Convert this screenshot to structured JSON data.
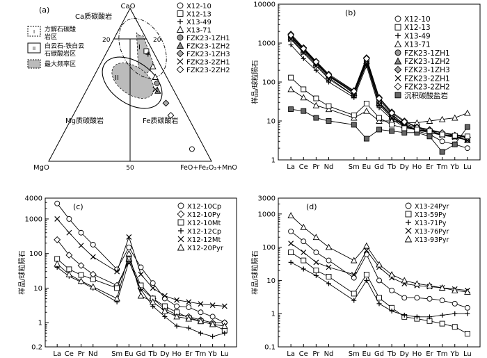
{
  "ternary": {
    "label": "(a)",
    "vertices": {
      "top": "CaO",
      "left": "MgO",
      "right": "FeO+Fe₂O₃+MnO"
    },
    "scale_marks": [
      "20",
      "20",
      "50"
    ],
    "fields": {
      "ca": "Ca质碳酸岩",
      "mg": "Mg质碳酸岩",
      "fe": "Fe质碳酸岩"
    },
    "region_labels": [
      "I",
      "II"
    ],
    "legend": [
      {
        "line1": "方解石碳酸",
        "line2": "岩区",
        "symbol": "I"
      },
      {
        "line1": "白云石-铁白云",
        "line2": "石碳酸岩区",
        "symbol": "II"
      },
      {
        "line1": "最大频率区",
        "line2": "",
        "symbol": "fill"
      }
    ],
    "points": [
      {
        "sample": "X12-10",
        "marker": "circle",
        "ca": 8,
        "fe": 84
      },
      {
        "sample": "X12-13",
        "marker": "square",
        "ca": 72,
        "fe": 24
      },
      {
        "sample": "X13-49",
        "marker": "plus",
        "ca": 70,
        "fe": 26
      },
      {
        "sample": "X13-71",
        "marker": "triangle",
        "ca": 62,
        "fe": 33
      },
      {
        "sample": "X13-71",
        "marker": "triangle",
        "ca": 55,
        "fe": 38
      },
      {
        "sample": "FZK23-1ZH1",
        "marker": "circle-filled",
        "ca": 51,
        "fe": 41
      },
      {
        "sample": "FZK23-1ZH2",
        "marker": "triangle-filled",
        "ca": 46,
        "fe": 44
      },
      {
        "sample": "FZK23-2ZH1",
        "marker": "cross",
        "ca": 47,
        "fe": 42
      },
      {
        "sample": "FZK23-1ZH3",
        "marker": "diamond-gray",
        "ca": 38,
        "fe": 53
      },
      {
        "sample": "FZK23-2ZH2",
        "marker": "diamond",
        "ca": 30,
        "fe": 60
      }
    ],
    "point_legend": [
      {
        "label": "X12-10",
        "marker": "circle"
      },
      {
        "label": "X12-13",
        "marker": "square"
      },
      {
        "label": "X13-49",
        "marker": "plus"
      },
      {
        "label": "X13-71",
        "marker": "triangle"
      },
      {
        "label": "FZK23-1ZH1",
        "marker": "circle-filled"
      },
      {
        "label": "FZK23-1ZH2",
        "marker": "triangle-filled"
      },
      {
        "label": "FZK23-1ZH3",
        "marker": "diamond-gray"
      },
      {
        "label": "FZK23-2ZH1",
        "marker": "cross"
      },
      {
        "label": "FZK23-2ZH2",
        "marker": "diamond"
      }
    ]
  },
  "chart_data": [
    {
      "type": "line",
      "panel": "(b)",
      "ylabel": "样品/球粒陨石",
      "yscale": "log",
      "ylim": [
        1,
        10000
      ],
      "yticks": [
        "1",
        "10",
        "100",
        "1000",
        "10000"
      ],
      "categories": [
        "La",
        "Ce",
        "Pr",
        "Nd",
        "Sm",
        "Eu",
        "Gd",
        "Tb",
        "Dy",
        "Ho",
        "Er",
        "Tm",
        "Yb",
        "Lu"
      ],
      "x": [
        1,
        2,
        3,
        4,
        6,
        7,
        8,
        9,
        10,
        11,
        12,
        13,
        14,
        15
      ],
      "series": [
        {
          "name": "X12-10",
          "marker": "circle",
          "values": [
            1500,
            700,
            320,
            150,
            50,
            380,
            35,
            15,
            8,
            5.5,
            4.5,
            3,
            2.5,
            2
          ]
        },
        {
          "name": "X12-13",
          "marker": "square",
          "values": [
            1300,
            600,
            280,
            130,
            45,
            330,
            28,
            13,
            7.5,
            6,
            5,
            4.5,
            4,
            3.5
          ]
        },
        {
          "name": "X13-49",
          "marker": "plus",
          "values": [
            900,
            400,
            200,
            100,
            40,
            260,
            22,
            11,
            7,
            6,
            5.5,
            5,
            4.5,
            4
          ]
        },
        {
          "name": "X13-71",
          "marker": "triangle",
          "values": [
            65,
            40,
            25,
            20,
            12,
            18,
            10,
            10,
            9,
            9,
            10,
            11,
            12,
            16
          ]
        },
        {
          "name": "FZK23-1ZH1",
          "marker": "circle-filled",
          "values": [
            1450,
            680,
            310,
            145,
            55,
            350,
            30,
            14,
            8.5,
            6.5,
            5.5,
            4.5,
            4,
            3.5
          ]
        },
        {
          "name": "FZK23-1ZH2",
          "marker": "triangle-filled",
          "values": [
            1400,
            650,
            300,
            140,
            52,
            340,
            29,
            13,
            8,
            6,
            5,
            4.5,
            4,
            3.2
          ]
        },
        {
          "name": "FZK23-1ZH3",
          "marker": "diamond-gray",
          "values": [
            1700,
            760,
            340,
            160,
            60,
            420,
            40,
            17,
            10,
            7,
            6,
            5,
            4.2,
            3.8
          ]
        },
        {
          "name": "FZK23-2ZH1",
          "marker": "cross",
          "values": [
            1250,
            560,
            260,
            120,
            45,
            300,
            26,
            12,
            7.5,
            5.8,
            5,
            4.3,
            3.8,
            3.2
          ]
        },
        {
          "name": "FZK23-2ZH2",
          "marker": "diamond",
          "values": [
            1600,
            720,
            330,
            150,
            58,
            400,
            38,
            16,
            9.5,
            6.8,
            5.8,
            5,
            4.3,
            3.8
          ]
        },
        {
          "name": "沉积碳酸盐岩",
          "marker": "square-filled",
          "values": [
            20,
            18,
            12,
            10,
            8,
            3.5,
            6,
            5.5,
            5,
            5,
            4,
            1.6,
            2.5,
            7
          ]
        },
        {
          "name": "",
          "marker": "square",
          "values": [
            130,
            65,
            38,
            24,
            14,
            28,
            12,
            8,
            6.5,
            6,
            5.5,
            4.5,
            4.2,
            4
          ]
        }
      ],
      "legend": [
        "X12-10",
        "X12-13",
        "X13-49",
        "X13-71",
        "FZK23-1ZH1",
        "FZK23-1ZH2",
        "FZK23-1ZH3",
        "FZK23-2ZH1",
        "FZK23-2ZH2",
        "沉积碳酸盐岩"
      ]
    },
    {
      "type": "line",
      "panel": "(c)",
      "ylabel": "样品/球粒陨石",
      "yscale": "log",
      "ylim": [
        0.2,
        4000
      ],
      "yticks": [
        "0.2",
        "1",
        "10",
        "100",
        "1000",
        "4000"
      ],
      "categories": [
        "La",
        "Ce",
        "Pr",
        "Nd",
        "Sm",
        "Eu",
        "Gd",
        "Tb",
        "Dy",
        "Ho",
        "Er",
        "Tm",
        "Yb",
        "Lu"
      ],
      "x": [
        1,
        2,
        3,
        4,
        6,
        7,
        8,
        9,
        10,
        11,
        12,
        13,
        14,
        15
      ],
      "series": [
        {
          "name": "X12-10Cp",
          "marker": "circle",
          "values": [
            2800,
            1000,
            400,
            180,
            35,
            150,
            40,
            14,
            5,
            3,
            2.8,
            2,
            1.5,
            1
          ]
        },
        {
          "name": "X12-10Py",
          "marker": "diamond",
          "values": [
            250,
            90,
            45,
            25,
            12,
            60,
            10,
            5,
            2.5,
            1.7,
            1.5,
            1.2,
            1,
            1
          ]
        },
        {
          "name": "X12-10Mt",
          "marker": "square",
          "values": [
            70,
            35,
            24,
            18,
            10,
            70,
            12,
            5,
            3,
            2,
            1.4,
            1.1,
            0.9,
            0.6
          ]
        },
        {
          "name": "X12-12Cp",
          "marker": "plus",
          "values": [
            40,
            22,
            15,
            10,
            4,
            60,
            9,
            3,
            1.5,
            0.8,
            0.7,
            0.5,
            0.4,
            0.5
          ]
        },
        {
          "name": "X12-12Mt",
          "marker": "cross",
          "values": [
            1000,
            400,
            170,
            80,
            30,
            300,
            25,
            10,
            6,
            4.5,
            4,
            3.5,
            3.2,
            3
          ]
        },
        {
          "name": "X12-20Pyr",
          "marker": "triangle",
          "values": [
            50,
            25,
            16,
            11,
            5,
            100,
            6,
            4,
            2.2,
            1.5,
            1.3,
            1.1,
            0.9,
            0.8
          ]
        }
      ],
      "legend": [
        "X12-10Cp",
        "X12-10Py",
        "X12-10Mt",
        "X12-12Cp",
        "X12-12Mt",
        "X12-20Pyr"
      ]
    },
    {
      "type": "line",
      "panel": "(d)",
      "ylabel": "样品/球粒陨石",
      "yscale": "log",
      "ylim": [
        0.1,
        3000
      ],
      "yticks": [
        "0.1",
        "1",
        "10",
        "100",
        "1000",
        "3000"
      ],
      "categories": [
        "La",
        "Ce",
        "Pr",
        "Nd",
        "Sm",
        "Eu",
        "Gd",
        "Tb",
        "Dy",
        "Ho",
        "Er",
        "Tm",
        "Yb",
        "Lu"
      ],
      "x": [
        1,
        2,
        3,
        4,
        6,
        7,
        8,
        9,
        10,
        11,
        12,
        13,
        14,
        15
      ],
      "series": [
        {
          "name": "X13-24Pyr",
          "marker": "circle",
          "values": [
            300,
            150,
            70,
            40,
            12,
            60,
            10,
            5,
            3,
            3,
            2.8,
            2.5,
            2,
            1.5
          ]
        },
        {
          "name": "X13-59Py",
          "marker": "square",
          "values": [
            70,
            40,
            20,
            13,
            4,
            15,
            3,
            1.5,
            0.8,
            0.7,
            0.6,
            0.5,
            0.4,
            0.25
          ]
        },
        {
          "name": "X13-71Py",
          "marker": "plus",
          "values": [
            35,
            22,
            14,
            8,
            2.5,
            10,
            2,
            1.2,
            0.9,
            0.8,
            0.8,
            0.9,
            1,
            1
          ]
        },
        {
          "name": "X13-76Pyr",
          "marker": "cross",
          "values": [
            130,
            70,
            35,
            25,
            15,
            80,
            25,
            12,
            8,
            7,
            6.5,
            6,
            5.5,
            5
          ]
        },
        {
          "name": "X13-93Pyr",
          "marker": "triangle",
          "values": [
            900,
            400,
            200,
            100,
            40,
            110,
            30,
            15,
            10,
            8,
            7,
            6,
            5,
            4.5
          ]
        }
      ],
      "legend": [
        "X13-24Pyr",
        "X13-59Py",
        "X13-71Py",
        "X13-76Pyr",
        "X13-93Pyr"
      ]
    }
  ]
}
